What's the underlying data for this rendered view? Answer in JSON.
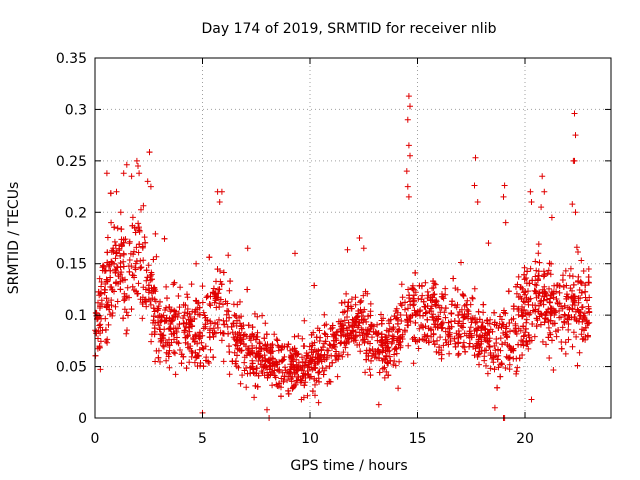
{
  "chart_data": {
    "type": "scatter",
    "title": "Day 174 of 2019, SRMTID for receiver nlib",
    "xlabel": "GPS time / hours",
    "ylabel": "SRMTID / TECUs",
    "xlim": [
      0,
      24
    ],
    "ylim": [
      0,
      0.35
    ],
    "x_ticks": [
      0,
      5,
      10,
      15,
      20
    ],
    "x_tick_labels": [
      "0",
      "5",
      "10",
      "15",
      "20"
    ],
    "y_ticks": [
      0,
      0.05,
      0.1,
      0.15,
      0.2,
      0.25,
      0.3,
      0.35
    ],
    "y_tick_labels": [
      "0",
      "0.05",
      "0.1",
      "0.15",
      "0.2",
      "0.25",
      "0.3",
      "0.35"
    ],
    "grid": true,
    "marker": "+",
    "marker_color": "#e00000",
    "series_x_range": [
      0,
      23
    ],
    "envelope": [
      {
        "x": 0.0,
        "y": 0.09,
        "spread": 0.04
      },
      {
        "x": 0.5,
        "y": 0.12,
        "spread": 0.05
      },
      {
        "x": 1.0,
        "y": 0.15,
        "spread": 0.055
      },
      {
        "x": 1.5,
        "y": 0.13,
        "spread": 0.05
      },
      {
        "x": 2.0,
        "y": 0.16,
        "spread": 0.06
      },
      {
        "x": 2.5,
        "y": 0.13,
        "spread": 0.055
      },
      {
        "x": 3.0,
        "y": 0.09,
        "spread": 0.04
      },
      {
        "x": 4.0,
        "y": 0.09,
        "spread": 0.04
      },
      {
        "x": 5.0,
        "y": 0.08,
        "spread": 0.04
      },
      {
        "x": 5.7,
        "y": 0.11,
        "spread": 0.05
      },
      {
        "x": 6.5,
        "y": 0.08,
        "spread": 0.04
      },
      {
        "x": 7.5,
        "y": 0.06,
        "spread": 0.03
      },
      {
        "x": 8.5,
        "y": 0.05,
        "spread": 0.03
      },
      {
        "x": 9.5,
        "y": 0.05,
        "spread": 0.03
      },
      {
        "x": 10.5,
        "y": 0.06,
        "spread": 0.03
      },
      {
        "x": 11.5,
        "y": 0.08,
        "spread": 0.035
      },
      {
        "x": 12.5,
        "y": 0.09,
        "spread": 0.04
      },
      {
        "x": 13.5,
        "y": 0.06,
        "spread": 0.03
      },
      {
        "x": 14.5,
        "y": 0.1,
        "spread": 0.045
      },
      {
        "x": 15.5,
        "y": 0.1,
        "spread": 0.04
      },
      {
        "x": 16.5,
        "y": 0.09,
        "spread": 0.035
      },
      {
        "x": 17.5,
        "y": 0.09,
        "spread": 0.04
      },
      {
        "x": 18.5,
        "y": 0.07,
        "spread": 0.035
      },
      {
        "x": 19.5,
        "y": 0.08,
        "spread": 0.04
      },
      {
        "x": 20.5,
        "y": 0.12,
        "spread": 0.05
      },
      {
        "x": 21.5,
        "y": 0.1,
        "spread": 0.045
      },
      {
        "x": 22.5,
        "y": 0.11,
        "spread": 0.05
      },
      {
        "x": 23.0,
        "y": 0.1,
        "spread": 0.04
      }
    ],
    "peaks": [
      {
        "x": 1.95,
        "y": 0.25
      },
      {
        "x": 2.0,
        "y": 0.245
      },
      {
        "x": 2.05,
        "y": 0.238
      },
      {
        "x": 1.7,
        "y": 0.235
      },
      {
        "x": 2.6,
        "y": 0.225
      },
      {
        "x": 2.45,
        "y": 0.23
      },
      {
        "x": 1.0,
        "y": 0.22
      },
      {
        "x": 5.7,
        "y": 0.22
      },
      {
        "x": 5.9,
        "y": 0.22
      },
      {
        "x": 5.8,
        "y": 0.21
      },
      {
        "x": 14.6,
        "y": 0.313
      },
      {
        "x": 14.65,
        "y": 0.303
      },
      {
        "x": 14.55,
        "y": 0.29
      },
      {
        "x": 14.6,
        "y": 0.265
      },
      {
        "x": 14.65,
        "y": 0.255
      },
      {
        "x": 14.5,
        "y": 0.24
      },
      {
        "x": 14.55,
        "y": 0.225
      },
      {
        "x": 14.6,
        "y": 0.215
      },
      {
        "x": 17.7,
        "y": 0.253
      },
      {
        "x": 17.65,
        "y": 0.226
      },
      {
        "x": 17.8,
        "y": 0.21
      },
      {
        "x": 19.05,
        "y": 0.226
      },
      {
        "x": 19.0,
        "y": 0.215
      },
      {
        "x": 19.1,
        "y": 0.19
      },
      {
        "x": 20.8,
        "y": 0.235
      },
      {
        "x": 20.9,
        "y": 0.22
      },
      {
        "x": 20.75,
        "y": 0.205
      },
      {
        "x": 20.3,
        "y": 0.21
      },
      {
        "x": 20.25,
        "y": 0.22
      },
      {
        "x": 22.3,
        "y": 0.296
      },
      {
        "x": 22.35,
        "y": 0.275
      },
      {
        "x": 22.3,
        "y": 0.25
      },
      {
        "x": 22.25,
        "y": 0.25
      },
      {
        "x": 22.2,
        "y": 0.208
      },
      {
        "x": 22.35,
        "y": 0.2
      },
      {
        "x": 12.3,
        "y": 0.175
      },
      {
        "x": 12.5,
        "y": 0.165
      },
      {
        "x": 9.3,
        "y": 0.16
      },
      {
        "x": 18.3,
        "y": 0.17
      },
      {
        "x": 0.75,
        "y": 0.19
      },
      {
        "x": 1.2,
        "y": 0.2
      },
      {
        "x": 7.1,
        "y": 0.165
      }
    ],
    "lows": [
      {
        "x": 8.1,
        "y": 0.0
      },
      {
        "x": 19.0,
        "y": 0.0
      },
      {
        "x": 19.05,
        "y": 0.0
      },
      {
        "x": 5.0,
        "y": 0.005
      },
      {
        "x": 8.0,
        "y": 0.008
      },
      {
        "x": 18.6,
        "y": 0.01
      },
      {
        "x": 10.4,
        "y": 0.015
      },
      {
        "x": 13.2,
        "y": 0.013
      },
      {
        "x": 20.3,
        "y": 0.018
      },
      {
        "x": 9.6,
        "y": 0.018
      },
      {
        "x": 7.4,
        "y": 0.02
      }
    ]
  }
}
